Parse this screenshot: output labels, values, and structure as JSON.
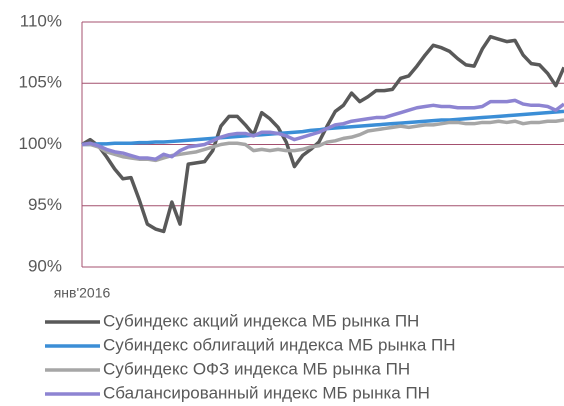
{
  "chart_data": {
    "type": "line",
    "categories": [
      "янв'2016",
      null,
      null,
      null,
      null,
      null,
      null,
      null,
      null,
      null,
      null,
      null,
      null,
      null,
      null,
      null,
      null,
      null,
      null,
      null,
      null,
      null,
      null,
      null,
      null,
      null,
      null,
      null,
      null,
      null,
      null,
      null,
      null,
      null,
      null,
      null,
      null,
      null,
      null,
      null,
      null,
      null,
      null,
      null,
      null,
      null,
      null,
      null,
      null,
      null,
      null,
      null,
      null,
      null,
      null,
      null,
      null,
      null,
      null,
      null
    ],
    "ylim": [
      90,
      110
    ],
    "yticks": [
      {
        "value": 90,
        "label": "90%"
      },
      {
        "value": 95,
        "label": "95%"
      },
      {
        "value": 100,
        "label": "100%"
      },
      {
        "value": 105,
        "label": "105%"
      },
      {
        "value": 110,
        "label": "110%"
      }
    ],
    "grid": true,
    "grid_color": "#a4506f",
    "series": [
      {
        "name": "Субиндекс акций индекса МБ рынка ПН",
        "color": "#595959",
        "values": [
          100,
          100.4,
          99.9,
          99,
          98,
          97.2,
          97.3,
          95.5,
          93.5,
          93.1,
          92.9,
          95.3,
          93.5,
          98.4,
          98.5,
          98.6,
          99.5,
          101.5,
          102.3,
          102.3,
          101.6,
          100.8,
          102.6,
          102.1,
          101.4,
          100.2,
          98.2,
          99.1,
          99.6,
          100.2,
          101.5,
          102.7,
          103.2,
          104.2,
          103.5,
          103.9,
          104.4,
          104.4,
          104.5,
          105.4,
          105.6,
          106.4,
          107.3,
          108.1,
          107.9,
          107.6,
          107,
          106.5,
          106.4,
          107.8,
          108.8,
          108.6,
          108.4,
          108.5,
          107.3,
          106.6,
          106.5,
          105.8,
          104.8,
          106.3
        ]
      },
      {
        "name": "Субиндекс облигаций индекса МБ рынка ПН",
        "color": "#3b8ed6",
        "values": [
          100,
          100,
          100.05,
          100.05,
          100.1,
          100.1,
          100.1,
          100.15,
          100.15,
          100.2,
          100.2,
          100.25,
          100.3,
          100.35,
          100.4,
          100.45,
          100.5,
          100.55,
          100.6,
          100.65,
          100.7,
          100.75,
          100.8,
          100.85,
          100.9,
          100.95,
          101,
          101.05,
          101.15,
          101.2,
          101.3,
          101.35,
          101.4,
          101.45,
          101.5,
          101.55,
          101.6,
          101.65,
          101.7,
          101.75,
          101.8,
          101.85,
          101.9,
          101.95,
          102,
          102,
          102.05,
          102.1,
          102.15,
          102.2,
          102.25,
          102.3,
          102.35,
          102.4,
          102.45,
          102.5,
          102.55,
          102.6,
          102.65,
          102.7
        ]
      },
      {
        "name": "Субиндекс ОФЗ индекса МБ рынка ПН",
        "color": "#a6a6a6",
        "values": [
          100,
          100,
          99.8,
          99.4,
          99.2,
          99,
          98.9,
          98.8,
          98.8,
          98.7,
          98.9,
          99.1,
          99.2,
          99.3,
          99.4,
          99.6,
          99.8,
          100,
          100.1,
          100.1,
          100,
          99.5,
          99.6,
          99.5,
          99.6,
          99.5,
          99.5,
          99.6,
          99.8,
          99.9,
          100.2,
          100.3,
          100.5,
          100.6,
          100.8,
          101.1,
          101.2,
          101.3,
          101.4,
          101.5,
          101.4,
          101.5,
          101.6,
          101.6,
          101.7,
          101.8,
          101.8,
          101.7,
          101.7,
          101.8,
          101.8,
          101.9,
          101.8,
          101.9,
          101.7,
          101.8,
          101.8,
          101.9,
          101.9,
          102
        ]
      },
      {
        "name": "Сбалансированный индекс МБ рынка ПН",
        "color": "#8d84d2",
        "values": [
          100,
          100.1,
          99.9,
          99.6,
          99.4,
          99.3,
          99.1,
          98.9,
          98.9,
          98.8,
          99.2,
          99,
          99.5,
          99.8,
          99.9,
          100,
          100.3,
          100.6,
          100.8,
          100.9,
          100.9,
          100.7,
          101,
          101,
          100.9,
          100.7,
          100.4,
          100.6,
          100.8,
          101,
          101.3,
          101.6,
          101.7,
          101.9,
          102,
          102.1,
          102.2,
          102.2,
          102.4,
          102.6,
          102.8,
          103,
          103.1,
          103.2,
          103.1,
          103.1,
          103,
          103,
          103,
          103.1,
          103.5,
          103.5,
          103.5,
          103.6,
          103.3,
          103.2,
          103.2,
          103.1,
          102.8,
          103.3
        ]
      }
    ]
  }
}
